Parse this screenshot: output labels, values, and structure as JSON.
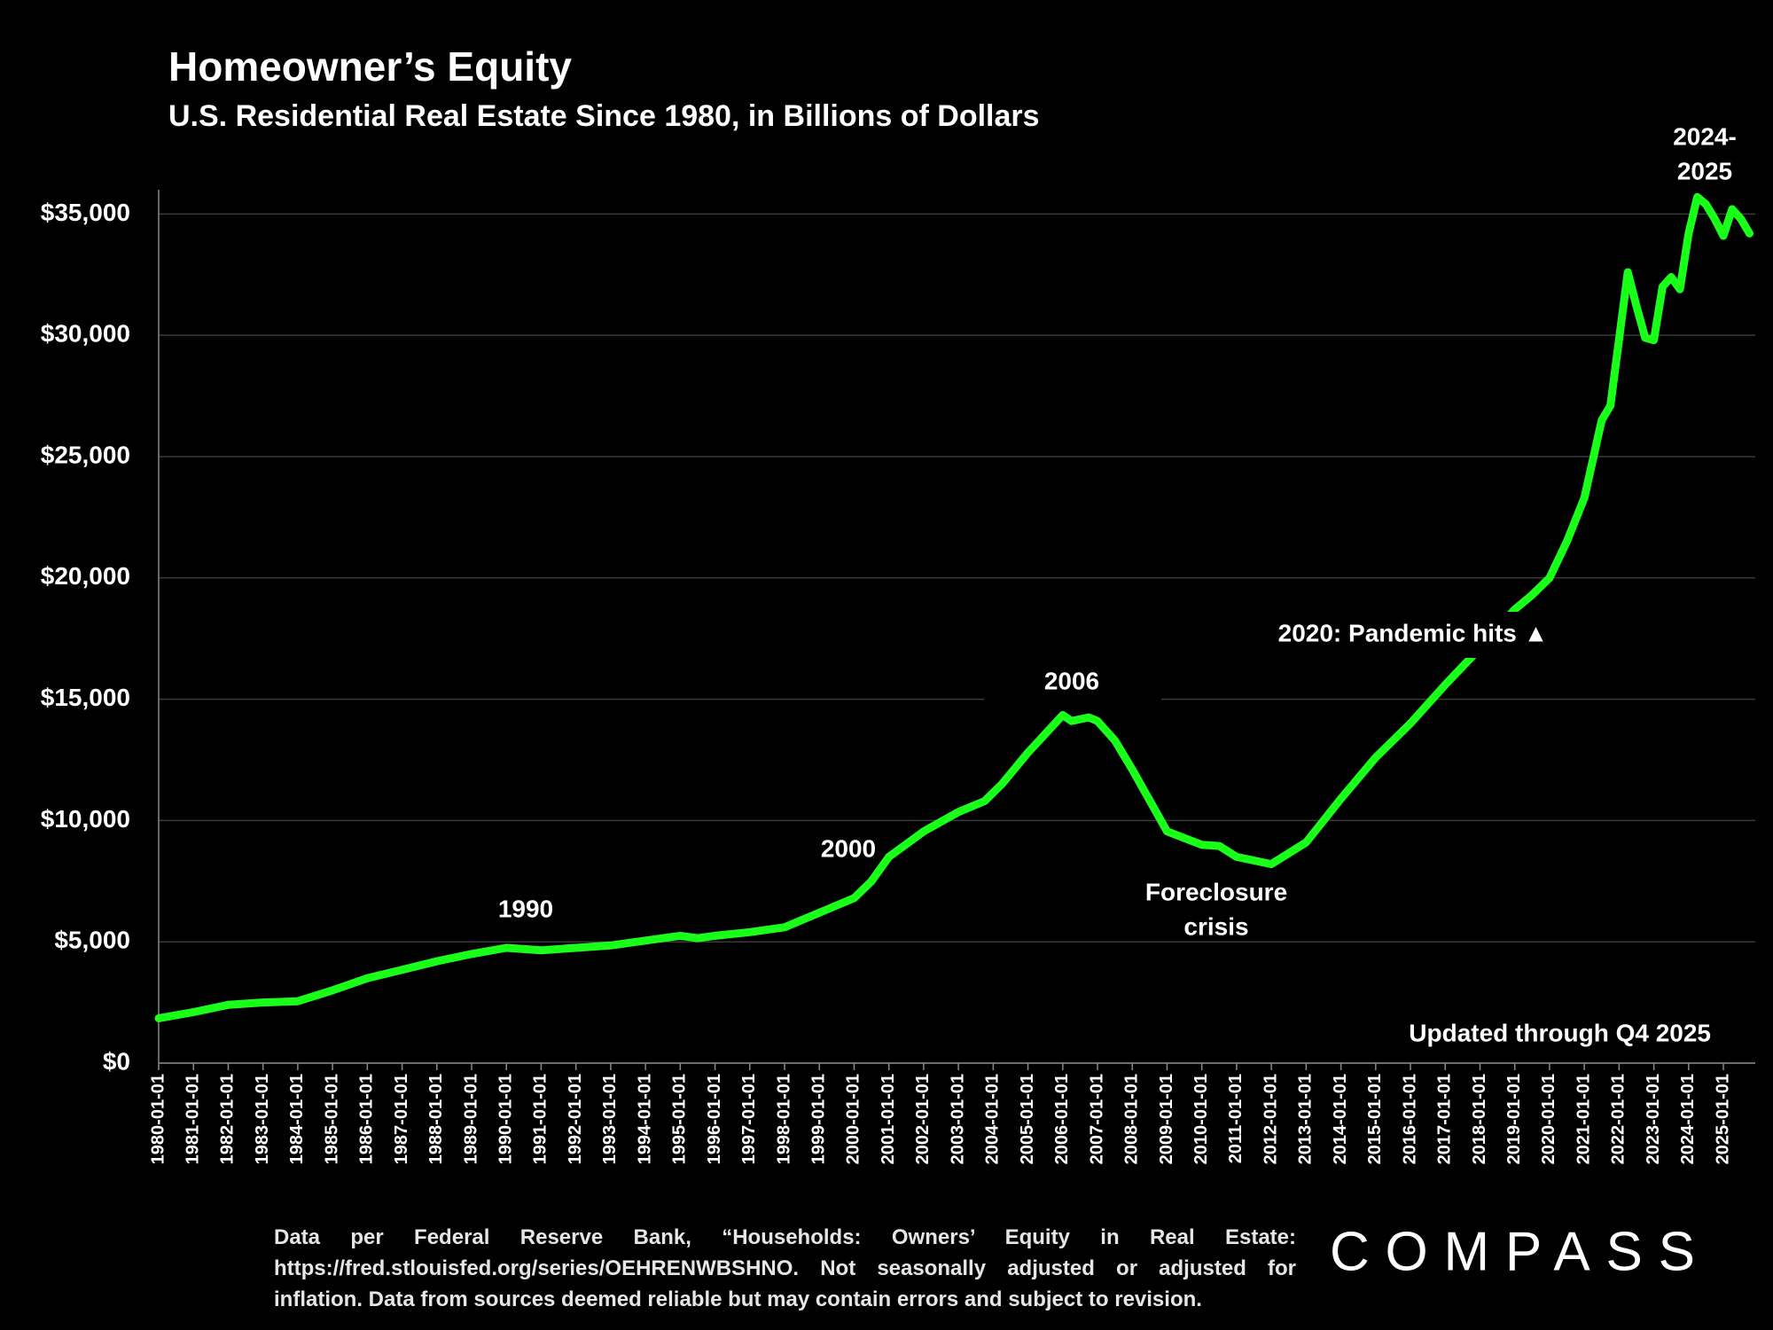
{
  "chart_data": {
    "type": "line",
    "title": "Homeowner’s Equity",
    "subtitle": "U.S. Residential Real Estate Since 1980, in Billions of Dollars",
    "x": [
      "1980-01-01",
      "1981-01-01",
      "1982-01-01",
      "1983-01-01",
      "1984-01-01",
      "1985-01-01",
      "1986-01-01",
      "1987-01-01",
      "1988-01-01",
      "1989-01-01",
      "1990-01-01",
      "1991-01-01",
      "1992-01-01",
      "1993-01-01",
      "1994-01-01",
      "1995-01-01",
      "1995-07-01",
      "1996-01-01",
      "1997-01-01",
      "1998-01-01",
      "1999-01-01",
      "2000-01-01",
      "2000-07-01",
      "2001-01-01",
      "2002-01-01",
      "2003-01-01",
      "2003-10-01",
      "2004-04-01",
      "2005-01-01",
      "2006-01-01",
      "2006-04-01",
      "2006-10-01",
      "2007-01-01",
      "2007-07-01",
      "2008-01-01",
      "2009-01-01",
      "2010-01-01",
      "2010-07-01",
      "2011-01-01",
      "2012-01-01",
      "2013-01-01",
      "2014-01-01",
      "2015-01-01",
      "2016-01-01",
      "2017-01-01",
      "2018-01-01",
      "2019-01-01",
      "2019-07-01",
      "2020-01-01",
      "2020-07-01",
      "2021-01-01",
      "2021-07-01",
      "2021-10-01",
      "2022-04-01",
      "2022-07-01",
      "2022-10-01",
      "2023-01-01",
      "2023-04-01",
      "2023-07-01",
      "2023-10-01",
      "2024-01-01",
      "2024-04-01",
      "2024-07-01",
      "2024-10-01",
      "2025-01-01",
      "2025-04-01",
      "2025-07-01",
      "2025-10-01"
    ],
    "series": [
      {
        "name": "Owners' Equity in Real Estate",
        "color": "#1aff1a",
        "values": [
          1850,
          2100,
          2400,
          2500,
          2550,
          3000,
          3500,
          3850,
          4200,
          4500,
          4750,
          4650,
          4750,
          4850,
          5050,
          5250,
          5150,
          5250,
          5400,
          5600,
          6200,
          6800,
          7500,
          8500,
          9550,
          10350,
          10800,
          11500,
          12800,
          14350,
          14100,
          14250,
          14100,
          13300,
          12100,
          9550,
          9000,
          8950,
          8500,
          8200,
          9100,
          10900,
          12600,
          14000,
          15600,
          17100,
          18700,
          19300,
          20000,
          21500,
          23300,
          26500,
          27100,
          32600,
          31200,
          29900,
          29800,
          32000,
          32400,
          31900,
          34200,
          35700,
          35400,
          34800,
          34100,
          35200,
          34800,
          34200
        ]
      }
    ],
    "xlim": [
      "1980-01-01",
      "2025-12-01"
    ],
    "xticks": [
      "1980-01-01",
      "1981-01-01",
      "1982-01-01",
      "1983-01-01",
      "1984-01-01",
      "1985-01-01",
      "1986-01-01",
      "1987-01-01",
      "1988-01-01",
      "1989-01-01",
      "1990-01-01",
      "1991-01-01",
      "1992-01-01",
      "1993-01-01",
      "1994-01-01",
      "1995-01-01",
      "1996-01-01",
      "1997-01-01",
      "1998-01-01",
      "1999-01-01",
      "2000-01-01",
      "2001-01-01",
      "2002-01-01",
      "2003-01-01",
      "2004-01-01",
      "2005-01-01",
      "2006-01-01",
      "2007-01-01",
      "2008-01-01",
      "2009-01-01",
      "2010-01-01",
      "2011-01-01",
      "2012-01-01",
      "2013-01-01",
      "2014-01-01",
      "2015-01-01",
      "2016-01-01",
      "2017-01-01",
      "2018-01-01",
      "2019-01-01",
      "2020-01-01",
      "2021-01-01",
      "2022-01-01",
      "2023-01-01",
      "2024-01-01",
      "2025-01-01"
    ],
    "ylim": [
      0,
      36000
    ],
    "yticks": [
      {
        "value": 0,
        "label": "$0"
      },
      {
        "value": 5000,
        "label": "$5,000"
      },
      {
        "value": 10000,
        "label": "$10,000"
      },
      {
        "value": 15000,
        "label": "$15,000"
      },
      {
        "value": 20000,
        "label": "$20,000"
      },
      {
        "value": 25000,
        "label": "$25,000"
      },
      {
        "value": 30000,
        "label": "$30,000"
      },
      {
        "value": 35000,
        "label": "$35,000"
      }
    ],
    "grid": true,
    "annotations": [
      [
        "1990"
      ],
      [
        "2000"
      ],
      [
        "2006"
      ],
      [
        "Foreclosure",
        "crisis"
      ],
      [
        "2020:  Pandemic hits ▲"
      ],
      [
        "Updated through Q4 2025"
      ],
      [
        "2024-",
        "2025"
      ]
    ],
    "note": "Data per Federal Reserve Bank, “Households: Owners’ Equity in Real Estate: https://fred.stlouisfed.org/series/OEHRENWBSHNO. Not seasonally adjusted or adjusted for inflation. Data from sources deemed reliable but may contain errors and subject to revision.",
    "logo": "COMPASS"
  }
}
